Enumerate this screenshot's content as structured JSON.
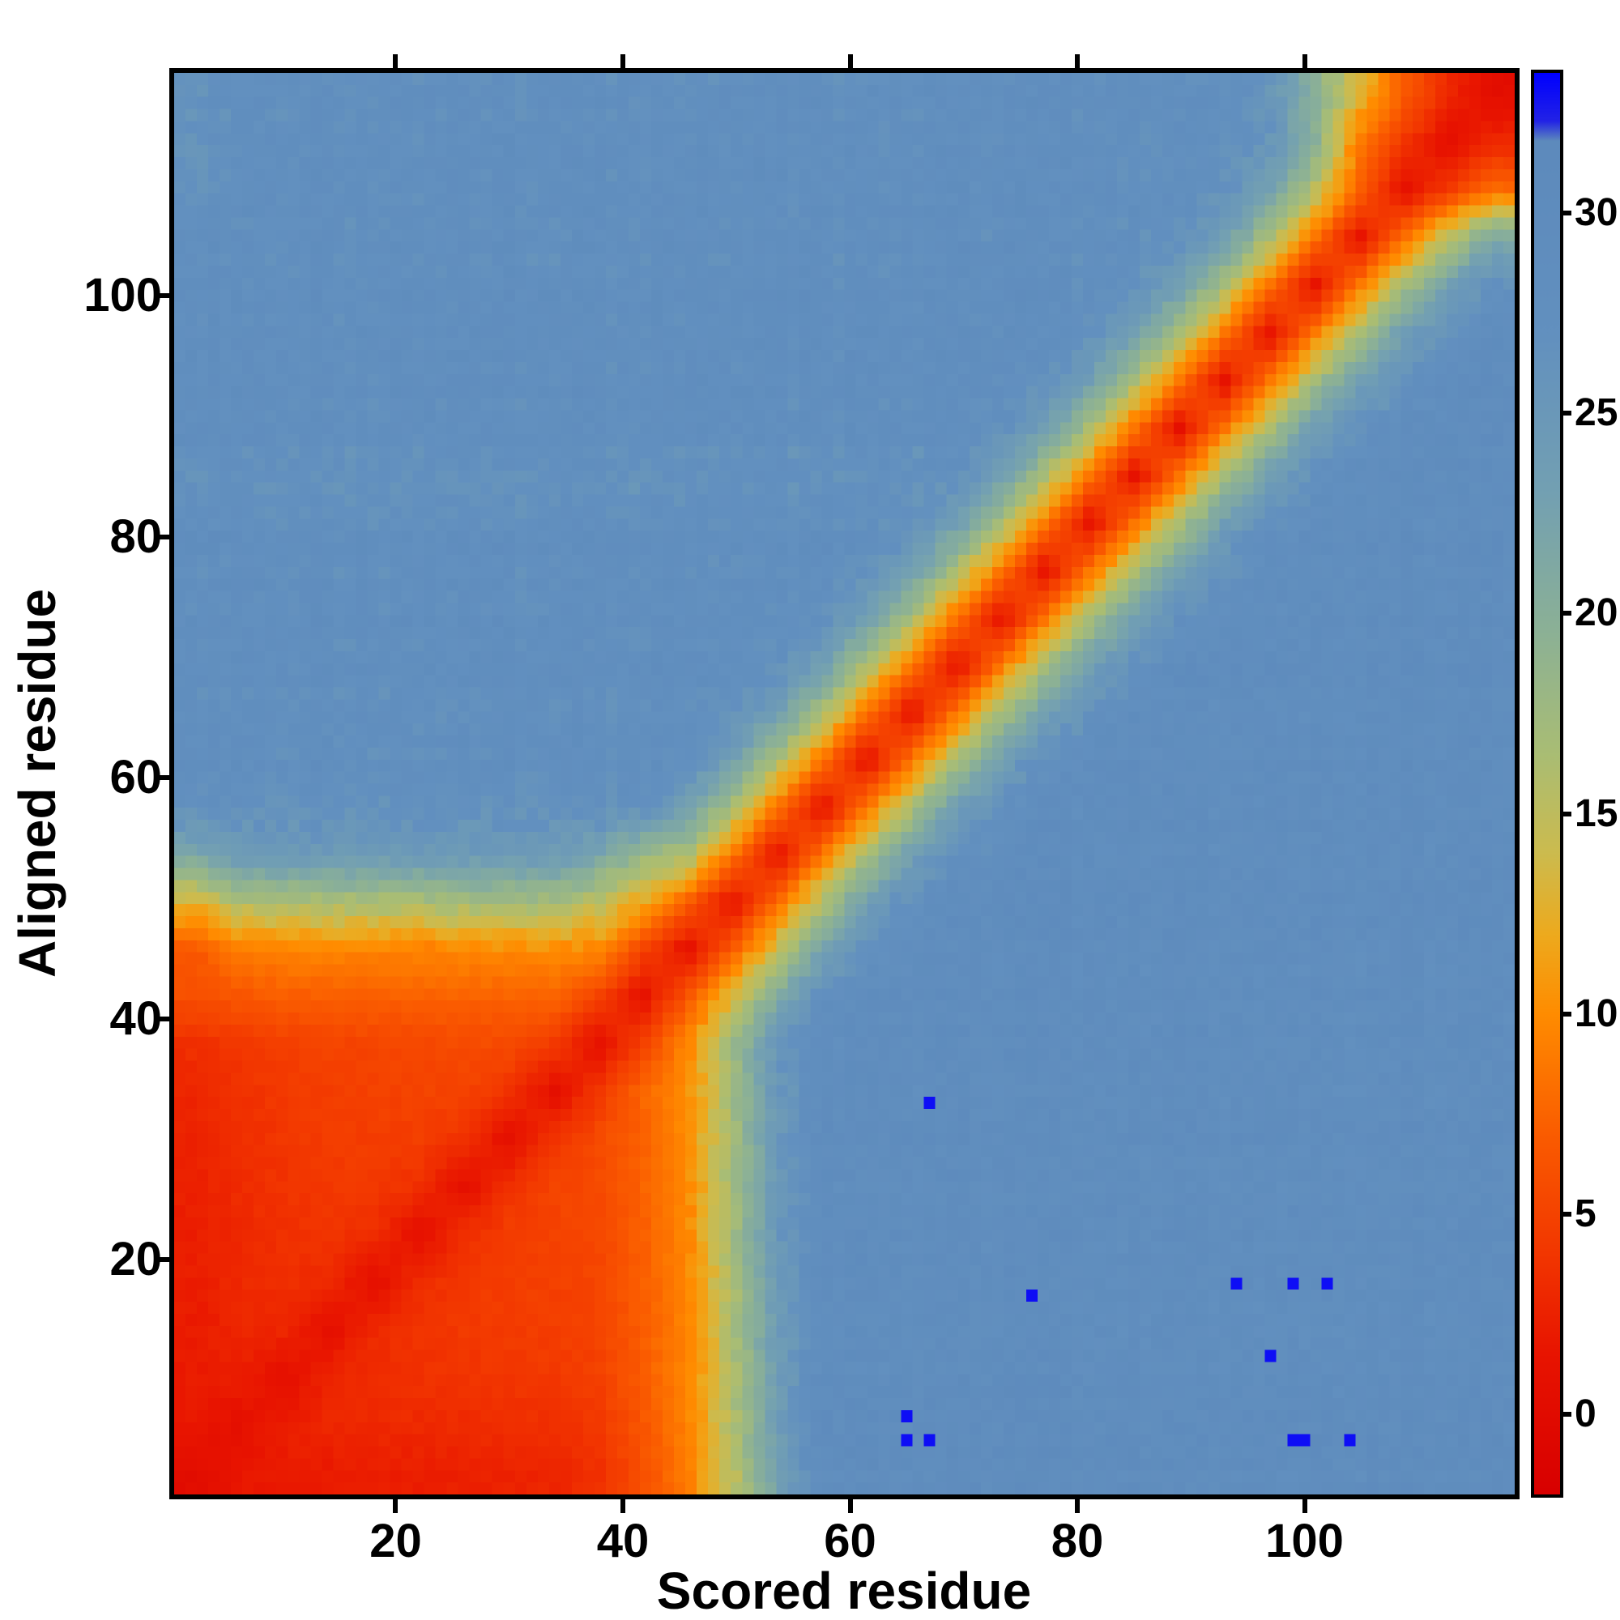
{
  "figure": {
    "background": "#ffffff",
    "frame_color": "#000000"
  },
  "chart_data": {
    "type": "heatmap",
    "title": "",
    "xlabel": "Scored residue",
    "ylabel": "Aligned residue",
    "x_ticks": [
      20,
      40,
      60,
      80,
      100
    ],
    "y_ticks": [
      20,
      40,
      60,
      80,
      100
    ],
    "n_residues": 118,
    "value_range": [
      -2.0,
      33.5
    ],
    "colorbar_ticks": [
      0,
      5,
      10,
      15,
      20,
      25,
      30
    ],
    "colormap_stops": [
      [
        -2.0,
        "#d80000"
      ],
      [
        1.5,
        "#e81400"
      ],
      [
        4.0,
        "#f23600"
      ],
      [
        7.0,
        "#fa5c00"
      ],
      [
        10.0,
        "#ff8c00"
      ],
      [
        12.0,
        "#edaa1e"
      ],
      [
        14.0,
        "#ccbb4e"
      ],
      [
        16.5,
        "#a9bd74"
      ],
      [
        19.5,
        "#8cb195"
      ],
      [
        23.0,
        "#73a0b2"
      ],
      [
        27.0,
        "#6290bf"
      ],
      [
        31.8,
        "#5d8abc"
      ],
      [
        32.3,
        "#2222e6"
      ],
      [
        33.5,
        "#0000ff"
      ]
    ],
    "outlier_value": 33.0,
    "outliers_scored_aligned": [
      [
        67,
        33
      ],
      [
        76,
        17
      ],
      [
        94,
        18
      ],
      [
        99,
        18
      ],
      [
        102,
        18
      ],
      [
        97,
        12
      ],
      [
        65,
        7
      ],
      [
        65,
        5
      ],
      [
        67,
        5
      ],
      [
        99,
        5
      ],
      [
        100,
        5
      ],
      [
        104,
        5
      ]
    ],
    "matrix_bins": 30,
    "matrix_rows_bottom_to_top": [
      [
        0.3,
        1.6,
        2.0,
        2.0,
        2.2,
        2.2,
        2.4,
        2.6,
        2.8,
        3.5,
        6.0,
        9.0,
        15.0,
        23.0,
        29.2,
        29.2,
        29.2,
        29.2,
        29.2,
        29.2,
        29.2,
        29.2,
        29.2,
        29.2,
        29.2,
        29.2,
        29.2,
        29.2,
        29.2,
        29.2
      ],
      [
        1.6,
        0.8,
        2.2,
        2.8,
        3.0,
        3.0,
        3.2,
        3.4,
        3.6,
        4.2,
        6.5,
        9.5,
        16.0,
        24.0,
        29.2,
        29.2,
        29.2,
        29.2,
        29.2,
        29.2,
        29.2,
        29.2,
        29.2,
        29.2,
        29.2,
        29.2,
        29.2,
        29.2,
        29.2,
        29.2
      ],
      [
        2.0,
        2.2,
        0.8,
        2.8,
        3.4,
        3.6,
        3.8,
        4.0,
        4.2,
        4.8,
        7.0,
        9.5,
        16.0,
        24.0,
        29.2,
        29.2,
        29.2,
        29.2,
        29.2,
        29.2,
        29.2,
        29.2,
        29.2,
        29.2,
        29.2,
        29.2,
        29.2,
        29.2,
        29.2,
        29.2
      ],
      [
        2.0,
        2.8,
        2.8,
        0.8,
        3.0,
        3.8,
        4.2,
        4.4,
        4.6,
        5.0,
        7.0,
        9.5,
        16.5,
        24.5,
        29.2,
        29.2,
        29.2,
        29.2,
        29.2,
        29.2,
        29.2,
        29.2,
        29.2,
        29.2,
        29.2,
        29.2,
        29.2,
        29.2,
        29.2,
        29.2
      ],
      [
        2.2,
        3.0,
        3.4,
        3.0,
        0.8,
        3.2,
        4.2,
        4.6,
        4.8,
        5.2,
        7.2,
        9.5,
        16.5,
        24.5,
        29.2,
        29.2,
        29.2,
        29.2,
        29.2,
        29.2,
        29.2,
        29.2,
        29.2,
        29.2,
        29.2,
        29.2,
        29.2,
        29.2,
        29.2,
        29.2
      ],
      [
        2.2,
        3.0,
        3.6,
        3.8,
        3.2,
        0.8,
        3.4,
        4.6,
        5.0,
        5.4,
        7.2,
        9.8,
        17.0,
        25.0,
        29.2,
        29.2,
        29.2,
        29.2,
        29.2,
        29.2,
        29.2,
        29.2,
        29.2,
        29.2,
        29.2,
        29.2,
        29.2,
        29.2,
        29.2,
        29.2
      ],
      [
        2.4,
        3.2,
        3.8,
        4.2,
        4.2,
        3.4,
        0.8,
        3.6,
        5.0,
        5.6,
        7.4,
        9.8,
        17.0,
        25.0,
        29.2,
        29.2,
        29.2,
        29.2,
        29.2,
        29.2,
        29.2,
        29.2,
        29.2,
        29.2,
        29.2,
        29.2,
        29.2,
        29.2,
        29.2,
        29.2
      ],
      [
        2.6,
        3.4,
        4.0,
        4.4,
        4.6,
        4.6,
        3.6,
        0.8,
        3.8,
        5.6,
        7.4,
        10.0,
        17.0,
        25.0,
        29.2,
        29.2,
        29.2,
        29.2,
        29.2,
        29.2,
        29.2,
        29.2,
        29.2,
        29.2,
        29.2,
        29.2,
        29.2,
        29.2,
        29.2,
        29.2
      ],
      [
        2.8,
        3.6,
        4.2,
        4.6,
        4.8,
        5.0,
        5.0,
        3.8,
        0.8,
        4.2,
        7.6,
        10.0,
        17.5,
        25.5,
        29.2,
        29.2,
        29.2,
        29.2,
        29.2,
        29.2,
        29.2,
        29.2,
        29.2,
        29.2,
        29.2,
        29.2,
        29.2,
        29.2,
        29.2,
        29.2
      ],
      [
        3.5,
        4.2,
        4.8,
        5.0,
        5.2,
        5.4,
        5.6,
        5.6,
        4.2,
        0.9,
        5.0,
        10.0,
        17.5,
        25.5,
        29.2,
        29.2,
        29.2,
        29.2,
        29.2,
        29.2,
        29.2,
        29.2,
        29.2,
        29.2,
        29.2,
        29.2,
        29.2,
        29.2,
        29.2,
        29.2
      ],
      [
        6.0,
        6.5,
        7.0,
        7.0,
        7.2,
        7.2,
        7.4,
        7.4,
        7.6,
        5.0,
        0.9,
        6.5,
        13.0,
        21.0,
        27.5,
        29.2,
        29.2,
        29.2,
        29.2,
        29.2,
        29.2,
        29.2,
        29.2,
        29.2,
        29.2,
        29.2,
        29.2,
        29.2,
        29.2,
        29.2
      ],
      [
        6.5,
        9.0,
        9.5,
        9.5,
        9.5,
        9.5,
        9.8,
        9.8,
        10.0,
        10.0,
        5.0,
        0.9,
        7.0,
        14.5,
        22.5,
        27.5,
        29.2,
        29.2,
        29.2,
        29.2,
        29.2,
        29.2,
        29.2,
        29.2,
        29.2,
        29.2,
        29.2,
        29.2,
        29.2,
        29.2
      ],
      [
        13.0,
        16.0,
        16.5,
        16.5,
        16.5,
        16.5,
        17.0,
        17.0,
        17.0,
        15.0,
        12.0,
        7.0,
        0.9,
        8.0,
        16.0,
        23.5,
        27.0,
        29.2,
        29.2,
        29.2,
        29.2,
        29.2,
        29.2,
        29.2,
        29.2,
        29.2,
        29.2,
        29.2,
        29.2,
        29.2
      ],
      [
        22.0,
        24.5,
        24.5,
        24.5,
        24.5,
        24.5,
        24.5,
        24.5,
        24.5,
        22.0,
        18.0,
        16.5,
        8.5,
        0.9,
        8.5,
        16.5,
        23.5,
        27.0,
        29.2,
        29.2,
        29.2,
        29.2,
        29.2,
        29.2,
        29.2,
        29.2,
        29.2,
        29.2,
        29.2,
        29.2
      ],
      [
        27.0,
        27.0,
        27.0,
        27.0,
        27.0,
        27.0,
        27.0,
        27.0,
        27.0,
        27.0,
        27.0,
        23.5,
        16.5,
        8.5,
        0.9,
        8.5,
        16.5,
        23.5,
        27.0,
        29.2,
        29.2,
        29.2,
        29.2,
        29.2,
        29.2,
        29.2,
        29.2,
        29.2,
        29.2,
        29.2
      ],
      [
        28.0,
        28.0,
        28.0,
        28.0,
        28.0,
        28.0,
        28.0,
        28.0,
        28.0,
        28.0,
        28.0,
        27.0,
        23.5,
        16.5,
        8.5,
        0.9,
        8.5,
        16.5,
        23.5,
        27.0,
        29.2,
        29.2,
        29.2,
        29.2,
        29.2,
        29.2,
        29.2,
        29.2,
        29.2,
        29.2
      ],
      [
        28.0,
        28.0,
        28.0,
        28.0,
        28.0,
        28.0,
        28.0,
        28.0,
        28.0,
        28.0,
        28.0,
        28.0,
        27.0,
        23.5,
        16.5,
        8.5,
        0.9,
        8.5,
        16.5,
        23.5,
        27.0,
        29.2,
        29.2,
        29.2,
        29.2,
        29.2,
        29.2,
        29.2,
        29.2,
        29.2
      ],
      [
        28.0,
        28.0,
        28.0,
        28.0,
        28.0,
        28.0,
        28.0,
        28.0,
        28.0,
        28.0,
        28.0,
        28.0,
        28.0,
        27.0,
        23.5,
        16.5,
        8.5,
        0.9,
        8.5,
        16.5,
        23.5,
        27.0,
        29.2,
        29.2,
        29.2,
        29.2,
        29.2,
        29.2,
        29.2,
        29.2
      ],
      [
        28.0,
        28.0,
        28.0,
        28.0,
        28.0,
        28.0,
        28.0,
        28.0,
        28.0,
        28.0,
        28.0,
        28.0,
        28.0,
        28.0,
        27.0,
        23.5,
        16.5,
        8.5,
        0.9,
        8.5,
        16.5,
        23.5,
        27.0,
        29.2,
        29.2,
        29.2,
        29.2,
        29.2,
        29.2,
        29.2
      ],
      [
        28.0,
        28.0,
        28.0,
        28.0,
        28.0,
        28.0,
        28.0,
        28.0,
        28.0,
        28.0,
        28.0,
        28.0,
        28.0,
        28.0,
        28.0,
        27.0,
        23.5,
        16.5,
        8.5,
        0.9,
        8.5,
        16.5,
        23.5,
        27.0,
        29.2,
        29.2,
        29.2,
        29.2,
        29.2,
        29.2
      ],
      [
        28.0,
        28.0,
        28.0,
        28.0,
        28.0,
        28.0,
        28.0,
        28.0,
        28.0,
        28.0,
        28.0,
        28.0,
        28.0,
        28.0,
        28.0,
        28.0,
        27.0,
        23.5,
        16.5,
        8.5,
        0.9,
        8.5,
        16.5,
        23.5,
        27.0,
        29.2,
        29.2,
        29.2,
        29.2,
        29.2
      ],
      [
        26.8,
        26.8,
        26.8,
        26.8,
        26.8,
        26.8,
        26.8,
        26.8,
        26.8,
        26.8,
        26.8,
        26.8,
        26.8,
        26.8,
        26.8,
        26.8,
        26.8,
        27.0,
        23.5,
        16.5,
        8.5,
        0.9,
        8.5,
        16.5,
        23.5,
        27.0,
        29.2,
        29.2,
        29.2,
        29.2
      ],
      [
        28.0,
        28.0,
        28.0,
        28.0,
        28.0,
        28.0,
        28.0,
        28.0,
        28.0,
        28.0,
        28.0,
        28.0,
        28.0,
        28.0,
        28.0,
        28.0,
        28.0,
        28.0,
        27.0,
        23.5,
        16.5,
        8.5,
        0.9,
        8.5,
        16.5,
        23.5,
        27.0,
        29.2,
        29.2,
        29.2
      ],
      [
        28.0,
        28.0,
        28.0,
        28.0,
        28.0,
        28.0,
        28.0,
        28.0,
        28.0,
        28.0,
        28.0,
        28.0,
        28.0,
        28.0,
        28.0,
        28.0,
        28.0,
        28.0,
        28.0,
        27.0,
        23.5,
        16.5,
        8.5,
        0.9,
        8.5,
        16.5,
        23.5,
        27.0,
        29.2,
        29.2
      ],
      [
        28.0,
        28.0,
        28.0,
        28.0,
        28.0,
        28.0,
        28.0,
        28.0,
        28.0,
        28.0,
        28.0,
        28.0,
        28.0,
        28.0,
        28.0,
        28.0,
        28.0,
        28.0,
        28.0,
        28.0,
        27.0,
        23.5,
        16.5,
        8.5,
        0.9,
        8.5,
        16.5,
        23.5,
        27.0,
        29.2
      ],
      [
        28.0,
        28.0,
        28.0,
        28.0,
        28.0,
        28.0,
        28.0,
        28.0,
        28.0,
        28.0,
        28.0,
        28.0,
        28.0,
        28.0,
        28.0,
        28.0,
        28.0,
        28.0,
        28.0,
        28.0,
        28.0,
        27.0,
        23.5,
        16.5,
        8.5,
        0.9,
        8.5,
        16.5,
        23.5,
        27.0
      ],
      [
        28.0,
        28.0,
        28.0,
        28.0,
        28.0,
        28.0,
        28.0,
        28.0,
        28.0,
        28.0,
        28.0,
        28.0,
        28.0,
        28.0,
        28.0,
        28.0,
        28.0,
        28.0,
        28.0,
        28.0,
        28.0,
        28.0,
        27.0,
        23.5,
        16.5,
        8.5,
        0.9,
        8.0,
        15.0,
        22.0
      ],
      [
        26.5,
        28.0,
        28.0,
        28.0,
        28.0,
        28.0,
        28.0,
        28.0,
        28.0,
        28.0,
        28.0,
        28.0,
        28.0,
        28.0,
        28.0,
        28.0,
        28.0,
        28.0,
        28.0,
        28.0,
        28.0,
        28.0,
        28.0,
        27.0,
        23.0,
        15.5,
        7.5,
        0.8,
        4.5,
        8.0
      ],
      [
        26.5,
        28.0,
        28.0,
        28.0,
        28.0,
        28.0,
        28.0,
        28.0,
        28.0,
        28.0,
        28.0,
        28.0,
        28.0,
        28.0,
        28.0,
        28.0,
        28.0,
        28.0,
        28.0,
        28.0,
        28.0,
        28.0,
        28.0,
        28.0,
        26.0,
        20.0,
        9.0,
        4.0,
        0.6,
        3.0
      ],
      [
        26.5,
        28.0,
        28.0,
        28.0,
        28.0,
        28.0,
        28.0,
        28.0,
        28.0,
        28.0,
        28.0,
        28.0,
        28.0,
        28.0,
        28.0,
        28.0,
        28.0,
        28.0,
        28.0,
        28.0,
        28.0,
        28.0,
        28.0,
        28.0,
        26.0,
        20.0,
        13.0,
        7.0,
        3.0,
        0.4
      ]
    ]
  }
}
